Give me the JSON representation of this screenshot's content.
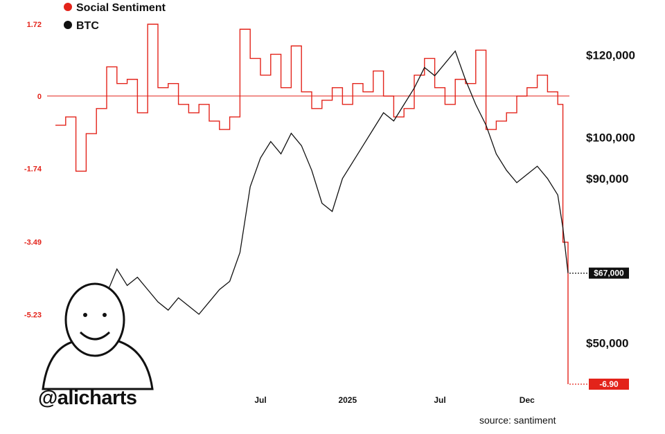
{
  "legend": {
    "items": [
      {
        "label": "Social Sentiment",
        "color": "#e3231a"
      },
      {
        "label": "BTC",
        "color": "#111111"
      }
    ]
  },
  "watermark": {
    "handle": "@alicharts",
    "source": "source: santiment"
  },
  "chart_data": {
    "type": "line",
    "x_axis": {
      "ticks": [
        "Jul",
        "2025",
        "Jul",
        "Dec"
      ]
    },
    "y_left": {
      "ticks": [
        1.72,
        0,
        -1.74,
        -3.49,
        -5.23
      ],
      "range": [
        -6.9,
        1.72
      ],
      "zero_line": true
    },
    "y_right": {
      "ticks": [
        "$120,000",
        "$100,000",
        "$90,000",
        "$50,000"
      ],
      "range": [
        40000,
        125000
      ]
    },
    "annotations": [
      {
        "label": "$67,000",
        "series": "BTC",
        "value": 67000
      },
      {
        "label": "-6.90",
        "series": "Social Sentiment",
        "value": -6.9
      }
    ],
    "series": [
      {
        "name": "Social Sentiment",
        "axis": "left",
        "color": "#e3231a",
        "x": [
          0,
          0.02,
          0.04,
          0.06,
          0.08,
          0.1,
          0.12,
          0.14,
          0.16,
          0.18,
          0.2,
          0.22,
          0.24,
          0.26,
          0.28,
          0.3,
          0.32,
          0.34,
          0.36,
          0.38,
          0.4,
          0.42,
          0.44,
          0.46,
          0.48,
          0.5,
          0.52,
          0.54,
          0.56,
          0.58,
          0.6,
          0.62,
          0.64,
          0.66,
          0.68,
          0.7,
          0.72,
          0.74,
          0.76,
          0.78,
          0.8,
          0.82,
          0.84,
          0.86,
          0.88,
          0.9,
          0.92,
          0.94,
          0.96,
          0.98,
          0.99,
          1.0
        ],
        "values": [
          -0.7,
          -0.5,
          -1.8,
          -0.9,
          -0.3,
          0.7,
          0.3,
          0.4,
          -0.4,
          1.72,
          0.2,
          0.3,
          -0.2,
          -0.4,
          -0.2,
          -0.6,
          -0.8,
          -0.5,
          1.6,
          0.9,
          0.5,
          1.0,
          0.2,
          1.2,
          0.1,
          -0.3,
          -0.1,
          0.2,
          -0.2,
          0.3,
          0.1,
          0.6,
          0.0,
          -0.5,
          -0.3,
          0.5,
          0.9,
          0.2,
          -0.2,
          0.4,
          0.3,
          1.1,
          -0.8,
          -0.6,
          -0.4,
          0.0,
          0.2,
          0.5,
          0.1,
          -0.2,
          -3.5,
          -6.9
        ]
      },
      {
        "name": "BTC",
        "axis": "right",
        "color": "#111111",
        "x": [
          0,
          0.02,
          0.04,
          0.06,
          0.08,
          0.1,
          0.12,
          0.14,
          0.16,
          0.18,
          0.2,
          0.22,
          0.24,
          0.26,
          0.28,
          0.3,
          0.32,
          0.34,
          0.36,
          0.38,
          0.4,
          0.42,
          0.44,
          0.46,
          0.48,
          0.5,
          0.52,
          0.54,
          0.56,
          0.58,
          0.6,
          0.62,
          0.64,
          0.66,
          0.68,
          0.7,
          0.72,
          0.74,
          0.76,
          0.78,
          0.8,
          0.82,
          0.84,
          0.86,
          0.88,
          0.9,
          0.92,
          0.94,
          0.96,
          0.98,
          0.99,
          1.0
        ],
        "values": [
          42000,
          45000,
          47000,
          48000,
          52000,
          62000,
          68000,
          64000,
          66000,
          63000,
          60000,
          58000,
          61000,
          59000,
          57000,
          60000,
          63000,
          65000,
          72000,
          88000,
          95000,
          99000,
          96000,
          101000,
          98000,
          92000,
          84000,
          82000,
          90000,
          94000,
          98000,
          102000,
          106000,
          104000,
          108000,
          112000,
          117000,
          115000,
          118000,
          121000,
          114000,
          108000,
          103000,
          96000,
          92000,
          89000,
          91000,
          93000,
          90000,
          86000,
          78000,
          67000
        ]
      }
    ]
  }
}
